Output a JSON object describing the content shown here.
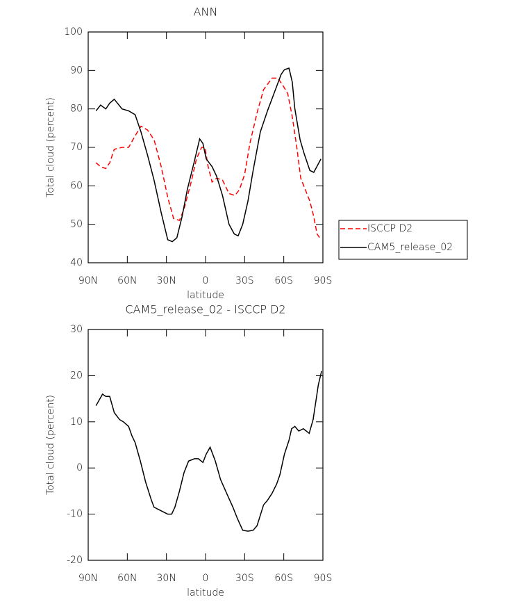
{
  "chart_data": [
    {
      "type": "line",
      "title": "ANN",
      "xlabel": "latitude",
      "ylabel": "Total cloud (percent)",
      "xlim": [
        90,
        -90
      ],
      "xticks": [
        {
          "value": 90,
          "label": "90N"
        },
        {
          "value": 60,
          "label": "60N"
        },
        {
          "value": 30,
          "label": "30N"
        },
        0,
        {
          "value": -30,
          "label": "30S"
        },
        {
          "value": -60,
          "label": "60S"
        },
        {
          "value": -90,
          "label": "90S"
        }
      ],
      "ylim": [
        40,
        100
      ],
      "yticks": [
        40,
        50,
        60,
        70,
        80,
        90,
        100
      ],
      "legend": "right",
      "series": [
        {
          "name": "ISCCP D2",
          "color": "#ff0000",
          "dash": "dashed",
          "x": [
            84,
            80.5,
            76.5,
            73.5,
            70,
            64,
            59,
            54,
            49.5,
            44.5,
            39.5,
            34,
            29,
            24.5,
            20,
            16.5,
            11,
            7,
            3,
            0.5,
            -2,
            -5,
            -8.5,
            -13,
            -18,
            -22.5,
            -26,
            -30,
            -34,
            -39.5,
            -44.5,
            -51,
            -55.5,
            -59.5,
            -63,
            -66.5,
            -70,
            -73,
            -76.5,
            -80,
            -83,
            -85.5,
            -88.5
          ],
          "values": [
            66,
            65,
            64.5,
            66,
            69.5,
            70,
            70,
            73,
            75.5,
            74.5,
            72,
            65,
            57,
            51.5,
            51,
            54,
            61,
            67,
            70,
            70,
            65,
            61,
            62,
            61.5,
            58,
            57.5,
            59,
            63,
            71,
            79,
            85,
            88,
            88,
            86,
            84,
            78,
            70,
            62,
            59,
            56,
            52,
            47.5,
            46
          ]
        },
        {
          "name": "CAM5_release_02",
          "color": "#000000",
          "dash": "solid",
          "x": [
            84,
            80.5,
            76.5,
            73.5,
            70,
            64,
            59,
            54,
            49.5,
            44.5,
            39.5,
            34,
            29,
            25.5,
            22,
            18,
            14,
            8.5,
            4.5,
            2,
            -0.5,
            -5,
            -8.5,
            -13,
            -18,
            -22,
            -25,
            -28.5,
            -32.5,
            -36.5,
            -42,
            -47.5,
            -52.5,
            -58,
            -60.5,
            -64,
            -66.5,
            -68.5,
            -72.5,
            -75.5,
            -80,
            -83,
            -88.5
          ],
          "values": [
            79.5,
            81,
            80,
            81.5,
            82.5,
            80,
            79.5,
            78.5,
            74,
            68,
            61.5,
            53,
            46,
            45.5,
            46.5,
            52,
            59,
            66.5,
            72.2,
            71,
            67,
            65,
            62.5,
            57.5,
            50,
            47.5,
            47,
            50,
            56,
            64,
            74,
            79.5,
            84,
            89,
            90.2,
            90.6,
            87,
            80,
            72,
            68.5,
            64,
            63.5,
            67
          ]
        }
      ]
    },
    {
      "type": "line",
      "title": "CAM5_release_02 - ISCCP D2",
      "xlabel": "latitude",
      "ylabel": "Total cloud (percent)",
      "xlim": [
        90,
        -90
      ],
      "xticks": [
        {
          "value": 90,
          "label": "90N"
        },
        {
          "value": 60,
          "label": "60N"
        },
        {
          "value": 30,
          "label": "30N"
        },
        0,
        {
          "value": -30,
          "label": "30S"
        },
        {
          "value": -60,
          "label": "60S"
        },
        {
          "value": -90,
          "label": "90S"
        }
      ],
      "ylim": [
        -20,
        30
      ],
      "yticks": [
        -20,
        -10,
        0,
        10,
        20,
        30
      ],
      "series": [
        {
          "color": "#000000",
          "dash": "solid",
          "x": [
            84,
            81,
            79,
            76.5,
            73.5,
            70,
            66,
            63,
            59,
            56.5,
            54,
            50,
            46,
            41.5,
            39.5,
            36,
            32.5,
            29,
            26,
            23.5,
            20,
            16.5,
            13,
            8.5,
            5.5,
            2,
            -0.5,
            -3.5,
            -7.5,
            -11.5,
            -17,
            -21,
            -24.5,
            -28.5,
            -32.5,
            -36.5,
            -39.5,
            -44.5,
            -47.5,
            -51,
            -54.5,
            -57,
            -60.5,
            -64,
            -66,
            -68.5,
            -71.5,
            -75,
            -79.5,
            -82.5,
            -86.5,
            -89
          ],
          "values": [
            13.5,
            15,
            16,
            15.5,
            15.5,
            12,
            10.5,
            10,
            9,
            7,
            5.5,
            1.5,
            -3,
            -7,
            -8.5,
            -9,
            -9.5,
            -10,
            -10,
            -8.5,
            -5,
            -1,
            1.5,
            2,
            2,
            1.2,
            3,
            4.5,
            1.5,
            -2.5,
            -6,
            -8.5,
            -11,
            -13.5,
            -13.7,
            -13.5,
            -12.5,
            -8,
            -7,
            -5.5,
            -3.5,
            -1.5,
            3,
            6,
            8.5,
            9,
            8,
            8.5,
            7.5,
            10.5,
            18,
            21
          ]
        }
      ]
    }
  ]
}
